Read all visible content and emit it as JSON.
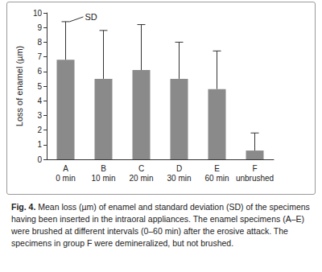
{
  "chart_data": {
    "type": "bar",
    "y_label": "Loss of enamel (µm)",
    "categories": [
      "A\n0 min",
      "B\n10 min",
      "C\n20 min",
      "D\n30 min",
      "E\n60 min",
      "F\nunbrushed"
    ],
    "values": [
      6.8,
      5.5,
      6.1,
      5.5,
      4.8,
      0.6
    ],
    "sd": [
      2.6,
      3.3,
      3.1,
      2.5,
      2.6,
      1.2
    ],
    "color": "#8a8a8a",
    "ylim": [
      0,
      10
    ],
    "yticks": [
      0,
      1,
      2,
      3,
      4,
      5,
      6,
      7,
      8,
      9,
      10
    ],
    "grid": false,
    "annotations": [
      {
        "text": "SD"
      }
    ],
    "caption_label": "Fig. 4.",
    "caption": "Mean loss (µm) of enamel and standard deviation (SD) of the specimens having been inserted in the intraoral appliances. The enamel specimens (A–E) were brushed at different intervals (0–60 min) after the erosive attack. The specimens in group F were demineralized, but not brushed."
  }
}
